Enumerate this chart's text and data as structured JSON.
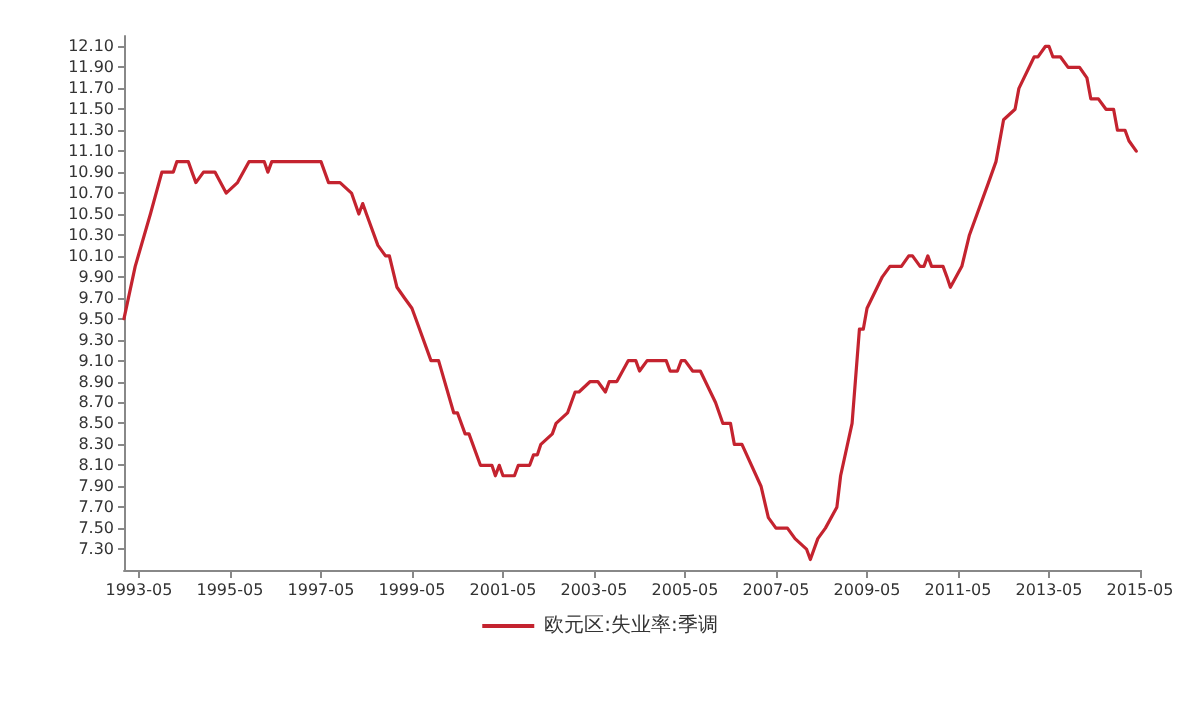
{
  "chart_data": {
    "type": "line",
    "legend": "bottom",
    "grid": false,
    "marker": "none",
    "line_style": "solid",
    "xlim": [
      "1993-01",
      "2015-05"
    ],
    "ylim": [
      7.1,
      12.2
    ],
    "xticks": [
      "1993-05",
      "1995-05",
      "1997-05",
      "1999-05",
      "2001-05",
      "2003-05",
      "2005-05",
      "2007-05",
      "2009-05",
      "2011-05",
      "2013-05",
      "2015-05"
    ],
    "yticks": [
      {
        "value": 7.3,
        "label": "7.30"
      },
      {
        "value": 7.5,
        "label": "7.50"
      },
      {
        "value": 7.7,
        "label": "7.70"
      },
      {
        "value": 7.9,
        "label": "7.90"
      },
      {
        "value": 8.1,
        "label": "8.10"
      },
      {
        "value": 8.3,
        "label": "8.30"
      },
      {
        "value": 8.5,
        "label": "8.50"
      },
      {
        "value": 8.7,
        "label": "8.70"
      },
      {
        "value": 8.9,
        "label": "8.90"
      },
      {
        "value": 9.1,
        "label": "9.10"
      },
      {
        "value": 9.3,
        "label": "9.30"
      },
      {
        "value": 9.5,
        "label": "9.50"
      },
      {
        "value": 9.7,
        "label": "9.70"
      },
      {
        "value": 9.9,
        "label": "9.90"
      },
      {
        "value": 10.1,
        "label": "10.10"
      },
      {
        "value": 10.3,
        "label": "10.30"
      },
      {
        "value": 10.5,
        "label": "10.50"
      },
      {
        "value": 10.7,
        "label": "10.70"
      },
      {
        "value": 10.9,
        "label": "10.90"
      },
      {
        "value": 11.1,
        "label": "11.10"
      },
      {
        "value": 11.3,
        "label": "11.30"
      },
      {
        "value": 11.5,
        "label": "11.50"
      },
      {
        "value": 11.7,
        "label": "11.70"
      },
      {
        "value": 11.9,
        "label": "11.90"
      },
      {
        "value": 12.1,
        "label": "12.10"
      }
    ],
    "x": [
      "1993-01",
      "1993-04",
      "1993-08",
      "1993-11",
      "1994-02",
      "1994-03",
      "1994-06",
      "1994-07",
      "1994-08",
      "1994-10",
      "1995-01",
      "1995-04",
      "1995-07",
      "1995-10",
      "1996-02",
      "1996-03",
      "1996-04",
      "1997-05",
      "1997-07",
      "1997-10",
      "1998-01",
      "1998-03",
      "1998-04",
      "1998-05",
      "1998-08",
      "1998-10",
      "1998-11",
      "1999-01",
      "1999-03",
      "1999-05",
      "1999-06",
      "1999-10",
      "1999-12",
      "2000-04",
      "2000-05",
      "2000-07",
      "2000-08",
      "2000-11",
      "2001-02",
      "2001-03",
      "2001-04",
      "2001-05",
      "2001-08",
      "2001-09",
      "2001-12",
      "2002-01",
      "2002-02",
      "2002-03",
      "2002-06",
      "2002-07",
      "2002-10",
      "2002-12",
      "2003-01",
      "2003-04",
      "2003-06",
      "2003-08",
      "2003-09",
      "2003-11",
      "2004-02",
      "2004-04",
      "2004-05",
      "2004-07",
      "2004-12",
      "2005-01",
      "2005-03",
      "2005-04",
      "2005-05",
      "2005-07",
      "2005-09",
      "2006-01",
      "2006-03",
      "2006-05",
      "2006-06",
      "2006-08",
      "2007-01",
      "2007-03",
      "2007-05",
      "2007-08",
      "2007-10",
      "2008-01",
      "2008-02",
      "2008-04",
      "2008-06",
      "2008-09",
      "2008-10",
      "2009-01",
      "2009-03",
      "2009-04",
      "2009-05",
      "2009-09",
      "2009-11",
      "2010-02",
      "2010-04",
      "2010-05",
      "2010-07",
      "2010-08",
      "2010-09",
      "2010-10",
      "2011-01",
      "2011-02",
      "2011-03",
      "2011-06",
      "2011-08",
      "2012-01",
      "2012-03",
      "2012-05",
      "2012-08",
      "2012-09",
      "2013-01",
      "2013-02",
      "2013-04",
      "2013-05",
      "2013-06",
      "2013-08",
      "2013-10",
      "2014-01",
      "2014-03",
      "2014-04",
      "2014-06",
      "2014-08",
      "2014-10",
      "2014-11",
      "2015-01",
      "2015-02",
      "2015-04"
    ],
    "series": [
      {
        "name": "欧元区:失业率:季调",
        "color": "#c4232f",
        "values": [
          9.5,
          10.0,
          10.5,
          10.9,
          10.9,
          11.0,
          11.0,
          10.9,
          10.8,
          10.9,
          10.9,
          10.7,
          10.8,
          11.0,
          11.0,
          10.9,
          11.0,
          11.0,
          10.8,
          10.8,
          10.7,
          10.5,
          10.6,
          10.5,
          10.2,
          10.1,
          10.1,
          9.8,
          9.7,
          9.6,
          9.5,
          9.1,
          9.1,
          8.6,
          8.6,
          8.4,
          8.4,
          8.1,
          8.1,
          8.0,
          8.1,
          8.0,
          8.0,
          8.1,
          8.1,
          8.2,
          8.2,
          8.3,
          8.4,
          8.5,
          8.6,
          8.8,
          8.8,
          8.9,
          8.9,
          8.8,
          8.9,
          8.9,
          9.1,
          9.1,
          9.0,
          9.1,
          9.1,
          9.0,
          9.0,
          9.1,
          9.1,
          9.0,
          9.0,
          8.7,
          8.5,
          8.5,
          8.3,
          8.3,
          7.9,
          7.6,
          7.5,
          7.5,
          7.4,
          7.3,
          7.2,
          7.4,
          7.5,
          7.7,
          8.0,
          8.5,
          9.4,
          9.4,
          9.6,
          9.9,
          10.0,
          10.0,
          10.1,
          10.1,
          10.0,
          10.0,
          10.1,
          10.0,
          10.0,
          9.9,
          9.8,
          10.0,
          10.3,
          10.8,
          11.0,
          11.4,
          11.5,
          11.7,
          12.0,
          12.0,
          12.1,
          12.1,
          12.0,
          12.0,
          11.9,
          11.9,
          11.8,
          11.6,
          11.6,
          11.5,
          11.5,
          11.3,
          11.3,
          11.2,
          11.1
        ]
      }
    ]
  }
}
